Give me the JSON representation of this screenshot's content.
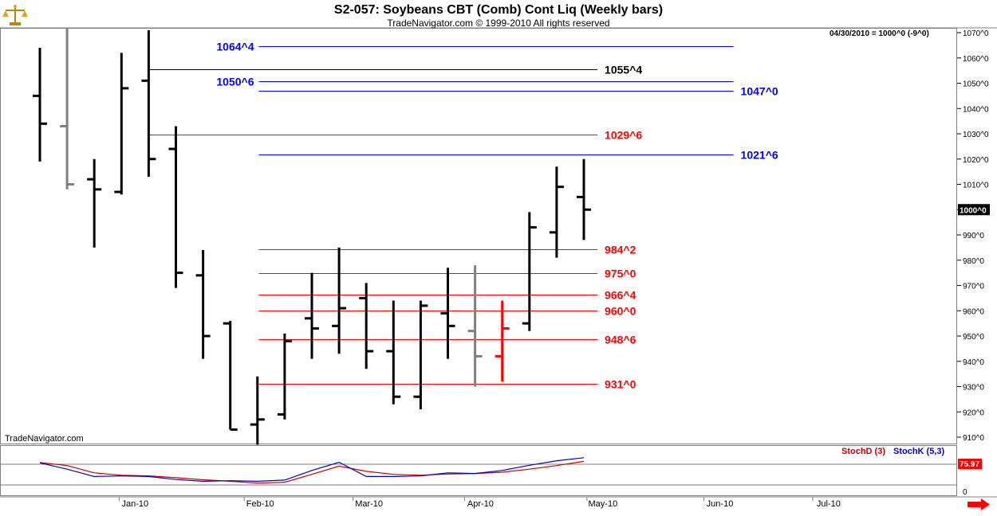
{
  "header": {
    "title": "S2-057:  Soybeans CBT (Comb) Cont Liq  (Weekly bars)",
    "subtitle": "TradeNavigator.com © 1999-2010 All rights reserved"
  },
  "watermark": "TradeNavigator.com",
  "readout": "04/30/2010 = 1000^0 (-9^0)",
  "logo_icon": "scales-icon",
  "scroll_icon": "right-arrow-icon",
  "colors": {
    "up_bar": "#000000",
    "neutral_bar": "#808080",
    "down_bar": "#ff0000",
    "red_level": "#ff0000",
    "blue_level": "#0000ff",
    "black_level": "#000000",
    "stoch_d": "#cc0000",
    "stoch_k": "#0000cc",
    "last_price_bg": "#000000"
  },
  "chart_data": {
    "type": "ohlc",
    "title": "S2-057:  Soybeans CBT (Comb) Cont Liq  (Weekly bars)",
    "price_axis": {
      "ticks": [
        "1070^0",
        "1060^0",
        "1050^0",
        "1040^0",
        "1030^0",
        "1020^0",
        "1010^0",
        "1000^0",
        "990^0",
        "980^0",
        "970^0",
        "960^0",
        "950^0",
        "940^0",
        "930^0",
        "920^0",
        "910^0"
      ],
      "ylim": [
        906,
        1071
      ],
      "last_price_label": "1000^0",
      "last_price": 1000
    },
    "date_axis": {
      "labels": [
        "Jan-10",
        "Feb-10",
        "Mar-10",
        "Apr-10",
        "May-10",
        "Jun-10",
        "Jul-10"
      ],
      "label_week_index": [
        3.5,
        8.1,
        12.1,
        16.2,
        20.7,
        25.0,
        29.0
      ]
    },
    "bars": [
      {
        "week": 0,
        "open": 1045,
        "high": 1064,
        "low": 1019,
        "close": 1034,
        "color": "black"
      },
      {
        "week": 1,
        "open": 1033,
        "high": 1072,
        "low": 1008,
        "close": 1010,
        "color": "gray"
      },
      {
        "week": 2,
        "open": 1012,
        "high": 1020,
        "low": 985,
        "close": 1008,
        "color": "black"
      },
      {
        "week": 3,
        "open": 1007,
        "high": 1062,
        "low": 1006,
        "close": 1048,
        "color": "black"
      },
      {
        "week": 4,
        "open": 1051,
        "high": 1071,
        "low": 1013,
        "close": 1020,
        "color": "black"
      },
      {
        "week": 5,
        "open": 1024,
        "high": 1033,
        "low": 969,
        "close": 975,
        "color": "black"
      },
      {
        "week": 6,
        "open": 974,
        "high": 984,
        "low": 941,
        "close": 950,
        "color": "black"
      },
      {
        "week": 7,
        "open": 955,
        "high": 956,
        "low": 913,
        "close": 913,
        "color": "black"
      },
      {
        "week": 8,
        "open": 915,
        "high": 934,
        "low": 907,
        "close": 917,
        "color": "black"
      },
      {
        "week": 9,
        "open": 919,
        "high": 951,
        "low": 917,
        "close": 948,
        "color": "black"
      },
      {
        "week": 10,
        "open": 957,
        "high": 975,
        "low": 941,
        "close": 953,
        "color": "black"
      },
      {
        "week": 11,
        "open": 954,
        "high": 985,
        "low": 943,
        "close": 961,
        "color": "black"
      },
      {
        "week": 12,
        "open": 965,
        "high": 971,
        "low": 937,
        "close": 944,
        "color": "black"
      },
      {
        "week": 13,
        "open": 944,
        "high": 964,
        "low": 923,
        "close": 926,
        "color": "black"
      },
      {
        "week": 14,
        "open": 926,
        "high": 964,
        "low": 921,
        "close": 962,
        "color": "black"
      },
      {
        "week": 15,
        "open": 959,
        "high": 977,
        "low": 941,
        "close": 954,
        "color": "black"
      },
      {
        "week": 16,
        "open": 952,
        "high": 978,
        "low": 930,
        "close": 942,
        "color": "gray"
      },
      {
        "week": 17,
        "open": 942,
        "high": 964,
        "low": 932,
        "close": 953,
        "color": "red"
      },
      {
        "week": 18,
        "open": 955,
        "high": 999,
        "low": 952,
        "close": 993,
        "color": "black"
      },
      {
        "week": 19,
        "open": 991,
        "high": 1017,
        "low": 981,
        "close": 1009,
        "color": "black"
      },
      {
        "week": 20,
        "open": 1005,
        "high": 1020,
        "low": 988,
        "close": 1000,
        "color": "black"
      }
    ],
    "levels": [
      {
        "label": "1064^4",
        "value": 1064.5,
        "color": "blue",
        "label_side": "left",
        "start_week": 8.05,
        "end_week": 25.5
      },
      {
        "label": "1055^4",
        "value": 1055.5,
        "color": "black",
        "label_side": "right",
        "start_week": 4.0,
        "end_week": 20.5
      },
      {
        "label": "1050^6",
        "value": 1050.75,
        "color": "blue",
        "label_side": "left",
        "start_week": 8.05,
        "end_week": 25.5
      },
      {
        "label": "1047^0",
        "value": 1047.0,
        "color": "blue",
        "label_side": "right",
        "start_week": 8.05,
        "end_week": 25.5
      },
      {
        "label": "1029^6",
        "value": 1029.75,
        "color": "red",
        "label_side": "right",
        "start_week": 4.0,
        "end_week": 20.5
      },
      {
        "label": "1021^6",
        "value": 1021.75,
        "color": "blue",
        "label_side": "right",
        "start_week": 8.05,
        "end_week": 25.5
      },
      {
        "label": "984^2",
        "value": 984.25,
        "color": "red",
        "label_side": "right",
        "start_week": 8.05,
        "end_week": 20.5
      },
      {
        "label": "975^0",
        "value": 975.0,
        "color": "red",
        "label_side": "right",
        "start_week": 8.05,
        "end_week": 20.5
      },
      {
        "label": "966^4",
        "value": 966.5,
        "color": "red",
        "label_side": "right",
        "start_week": 8.05,
        "end_week": 20.5
      },
      {
        "label": "960^0",
        "value": 960.0,
        "color": "red",
        "label_side": "right",
        "start_week": 8.05,
        "end_week": 20.5
      },
      {
        "label": "948^6",
        "value": 948.75,
        "color": "red",
        "label_side": "right",
        "start_week": 8.05,
        "end_week": 20.5
      },
      {
        "label": "931^0",
        "value": 931.0,
        "color": "red",
        "label_side": "right",
        "start_week": 8.05,
        "end_week": 20.5
      }
    ],
    "indicator": {
      "legend_d": "StochD (3)",
      "legend_k": "StochK (5,3)",
      "last_value_label": "75.97",
      "axis_label": "0",
      "range": [
        0,
        100
      ],
      "stoch_k": [
        73,
        52,
        28,
        30,
        28,
        18,
        12,
        14,
        12,
        16,
        48,
        75,
        28,
        28,
        30,
        40,
        38,
        48,
        65,
        80,
        90
      ],
      "stoch_d": [
        74,
        64,
        40,
        32,
        30,
        24,
        17,
        12,
        6,
        9,
        35,
        62,
        45,
        35,
        32,
        36,
        38,
        42,
        52,
        64,
        78
      ]
    }
  }
}
